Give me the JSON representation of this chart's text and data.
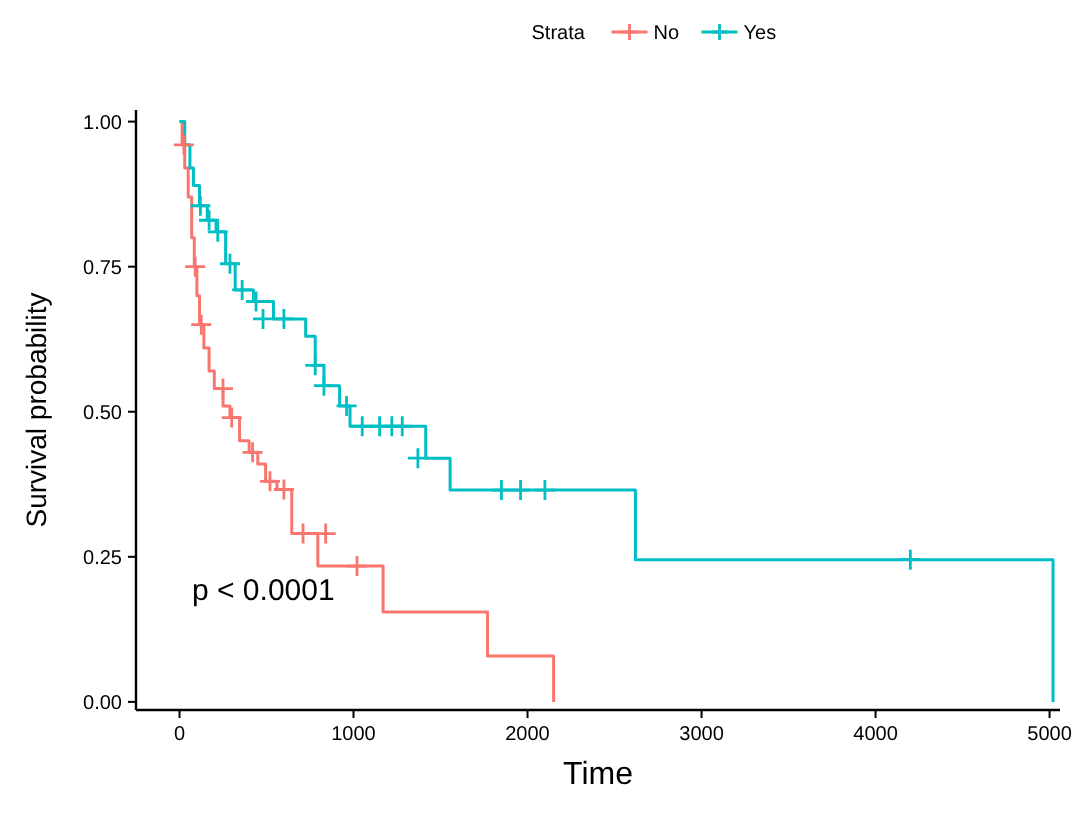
{
  "chart_data": {
    "type": "step",
    "xlabel": "Time",
    "ylabel": "Survival probability",
    "legend_title": "Strata",
    "legend": "top",
    "xlim": [
      -250,
      5060
    ],
    "ylim": [
      -0.014,
      1.02
    ],
    "xticks": [
      0,
      1000,
      2000,
      3000,
      4000,
      5000
    ],
    "yticks": [
      {
        "value": 0,
        "label": "0.00"
      },
      {
        "value": 0.25,
        "label": "0.25"
      },
      {
        "value": 0.5,
        "label": "0.50"
      },
      {
        "value": 0.75,
        "label": "0.75"
      },
      {
        "value": 1,
        "label": "1.00"
      }
    ],
    "annotations": [
      "p < 0.0001"
    ],
    "series": [
      {
        "name": "No",
        "color": "#f8766d",
        "x": [
          0,
          15,
          30,
          50,
          70,
          85,
          100,
          115,
          140,
          170,
          200,
          250,
          290,
          345,
          400,
          450,
          495,
          560,
          645,
          795,
          1170,
          1770,
          2150
        ],
        "values": [
          1,
          0.96,
          0.92,
          0.87,
          0.8,
          0.75,
          0.7,
          0.65,
          0.61,
          0.57,
          0.54,
          0.51,
          0.49,
          0.45,
          0.43,
          0.41,
          0.38,
          0.366,
          0.29,
          0.234,
          0.155,
          0.079,
          0
        ]
      },
      {
        "name": "Yes",
        "color": "#00bfc4",
        "x": [
          0,
          30,
          60,
          80,
          115,
          160,
          210,
          265,
          320,
          425,
          540,
          725,
          780,
          830,
          920,
          980,
          1415,
          1555,
          2620,
          5020
        ],
        "values": [
          1,
          0.96,
          0.92,
          0.89,
          0.855,
          0.83,
          0.81,
          0.755,
          0.71,
          0.69,
          0.66,
          0.63,
          0.58,
          0.545,
          0.51,
          0.475,
          0.42,
          0.365,
          0.245,
          0
        ]
      },
      {
        "color": "#f8766d",
        "type": "scatter",
        "marker": "cross",
        "x": [
          25,
          90,
          125,
          250,
          300,
          420,
          520,
          600,
          710,
          840,
          1020
        ],
        "values": [
          0.96,
          0.75,
          0.65,
          0.54,
          0.49,
          0.43,
          0.38,
          0.366,
          0.29,
          0.29,
          0.234
        ]
      },
      {
        "color": "#00bfc4",
        "type": "scatter",
        "marker": "cross",
        "x": [
          120,
          170,
          220,
          290,
          360,
          440,
          480,
          600,
          780,
          830,
          960,
          1050,
          1150,
          1220,
          1280,
          1370,
          1850,
          1960,
          2100,
          4200
        ],
        "values": [
          0.855,
          0.83,
          0.81,
          0.755,
          0.71,
          0.69,
          0.66,
          0.66,
          0.58,
          0.545,
          0.51,
          0.475,
          0.475,
          0.475,
          0.475,
          0.42,
          0.365,
          0.365,
          0.365,
          0.245
        ]
      }
    ]
  }
}
